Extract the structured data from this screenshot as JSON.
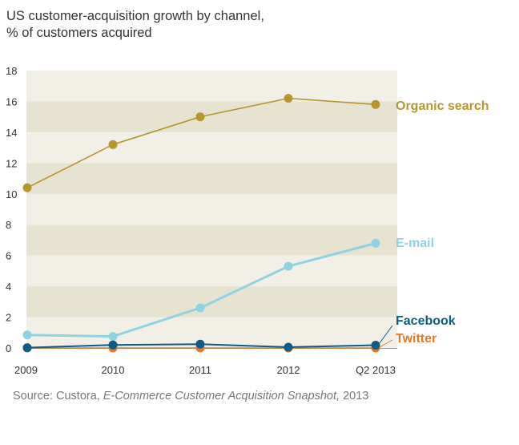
{
  "title_line1": "US customer-acquisition growth by channel,",
  "title_line2": "% of customers acquired",
  "source": {
    "prefix": "Source: Custora, ",
    "italic": "E-Commerce Customer Acquisition Snapshot,",
    "suffix": " 2013"
  },
  "colors": {
    "band_light": "#f2f0e6",
    "band_dark": "#e6e3d1",
    "organic": "#b8962e",
    "email": "#8fd3e3",
    "facebook": "#0e5c86",
    "twitter": "#e07a2e"
  },
  "chart_data": {
    "type": "line",
    "categories": [
      "2009",
      "2010",
      "2011",
      "2012",
      "Q2 2013"
    ],
    "ylim": [
      0,
      18
    ],
    "yticks": [
      0,
      2,
      4,
      6,
      8,
      10,
      12,
      14,
      16,
      18
    ],
    "grid": "alternating horizontal bands",
    "legend": "direct labels at right end of lines",
    "series": [
      {
        "name": "Organic search",
        "color": "#b8962e",
        "values": [
          10.4,
          13.2,
          15.0,
          16.2,
          15.8
        ]
      },
      {
        "name": "E-mail",
        "color": "#8fd3e3",
        "values": [
          0.85,
          0.75,
          2.6,
          5.3,
          6.8
        ]
      },
      {
        "name": "Facebook",
        "color": "#0e5c86",
        "values": [
          0.02,
          0.2,
          0.25,
          0.05,
          0.18
        ]
      },
      {
        "name": "Twitter",
        "color": "#e07a2e",
        "values": [
          0.0,
          0.0,
          0.0,
          0.0,
          0.0
        ]
      }
    ]
  }
}
